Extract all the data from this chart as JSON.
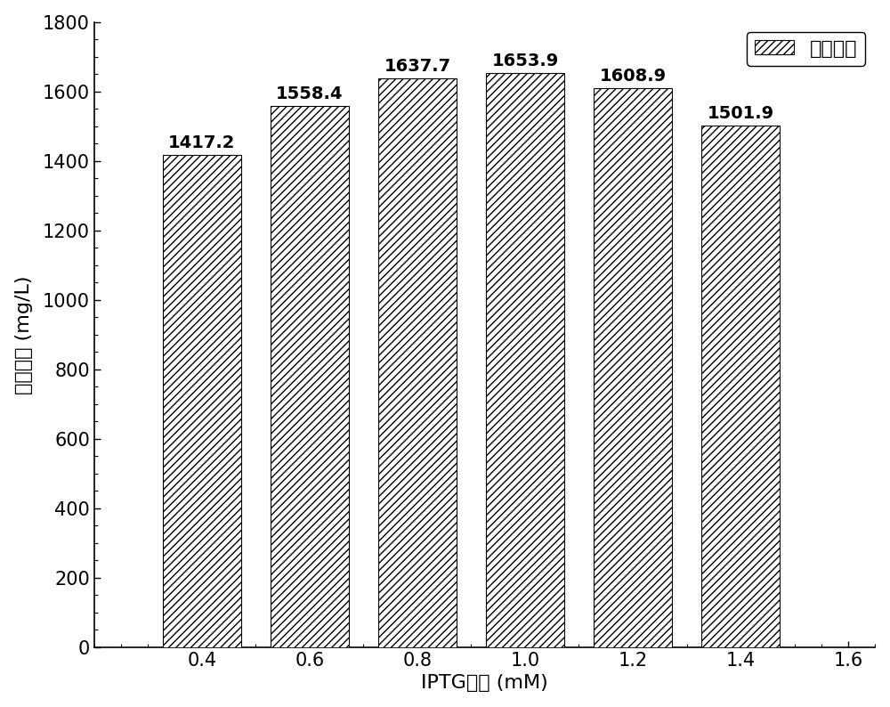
{
  "categories": [
    0.4,
    0.6,
    0.8,
    1.0,
    1.2,
    1.4
  ],
  "values": [
    1417.2,
    1558.4,
    1637.7,
    1653.9,
    1608.9,
    1501.9
  ],
  "xlabel": "IPTG浓度 (mM)",
  "ylabel": "覆盆子酮 (mg/L)",
  "legend_label": "覆盆子酮",
  "ylim": [
    0,
    1800
  ],
  "xlim": [
    0.2,
    1.65
  ],
  "bar_width": 0.145,
  "hatch_pattern": "////",
  "bar_facecolor": "#ffffff",
  "bar_edgecolor": "#000000",
  "background_color": "#ffffff",
  "label_fontsize": 16,
  "tick_fontsize": 15,
  "annotation_fontsize": 14,
  "yticks": [
    0,
    200,
    400,
    600,
    800,
    1000,
    1200,
    1400,
    1600,
    1800
  ],
  "xticks": [
    0.4,
    0.6,
    0.8,
    1.0,
    1.2,
    1.4,
    1.6
  ]
}
